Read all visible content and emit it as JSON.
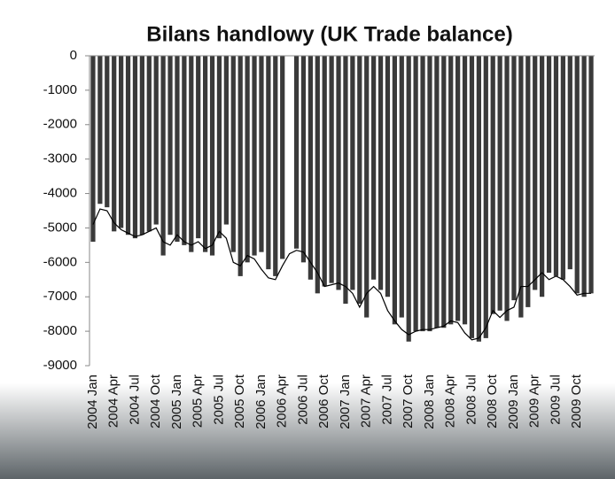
{
  "chart_data": {
    "type": "bar",
    "title": "Bilans handlowy (UK Trade balance)",
    "categories": [
      "2004 Jan",
      null,
      null,
      "2004 Apr",
      null,
      null,
      "2004 Jul",
      null,
      null,
      "2004 Oct",
      null,
      null,
      "2005 Jan",
      null,
      null,
      "2005 Apr",
      null,
      null,
      "2005 Jul",
      null,
      null,
      "2005 Oct",
      null,
      null,
      "2006 Jan",
      null,
      null,
      "2006 Apr",
      null,
      null,
      "2006 Jul",
      null,
      null,
      "2006 Oct",
      null,
      null,
      "2007 Jan",
      null,
      null,
      "2007 Apr",
      null,
      null,
      "2007 Jul",
      null,
      null,
      "2007 Oct",
      null,
      null,
      "2008 Jan",
      null,
      null,
      "2008 Apr",
      null,
      null,
      "2008 Jul",
      null,
      null,
      "2008 Oct",
      null,
      null,
      "2009 Jan",
      null,
      null,
      "2009 Apr",
      null,
      null,
      "2009 Jul",
      null,
      null,
      "2009 Oct",
      null,
      null
    ],
    "series": [
      {
        "kind": "bar",
        "color": "#3a3a3a",
        "values": [
          -5400,
          -4300,
          -4400,
          -5100,
          -5000,
          -5200,
          -5300,
          -5200,
          -5100,
          -4900,
          -5800,
          -5200,
          -5400,
          -5500,
          -5700,
          -5300,
          -5700,
          -5800,
          -5300,
          -4900,
          -5700,
          -6400,
          -6000,
          -5800,
          -5700,
          -6200,
          -6400,
          -5900,
          null,
          -5600,
          -6000,
          -6500,
          -6900,
          -6700,
          -6600,
          -6800,
          -7200,
          -6800,
          -7200,
          -7600,
          -6500,
          -6800,
          -7000,
          -7800,
          -7600,
          -8300,
          -8000,
          -8000,
          -8000,
          -7900,
          -7900,
          -7800,
          -7700,
          -7800,
          -8200,
          -8300,
          -8200,
          -7500,
          -7400,
          -7700,
          -7100,
          -7600,
          -7300,
          -6800,
          -7000,
          -6300,
          -6400,
          -6500,
          -6200,
          -6900,
          -7000,
          -6900
        ]
      },
      {
        "kind": "line",
        "color": "#000000",
        "values": [
          -4900,
          -4450,
          -4500,
          -4850,
          -5050,
          -5150,
          -5250,
          -5200,
          -5100,
          -5000,
          -5400,
          -5500,
          -5200,
          -5400,
          -5500,
          -5400,
          -5600,
          -5500,
          -5100,
          -5300,
          -6000,
          -6100,
          -5800,
          -5900,
          -6200,
          -6450,
          -6500,
          -6100,
          -5750,
          -5650,
          -5700,
          -6000,
          -6300,
          -6700,
          -6650,
          -6600,
          -6700,
          -6900,
          -7300,
          -6900,
          -6700,
          -6900,
          -7400,
          -7700,
          -7950,
          -8100,
          -8000,
          -7950,
          -7950,
          -7900,
          -7850,
          -7700,
          -7750,
          -8050,
          -8250,
          -8200,
          -7900,
          -7400,
          -7600,
          -7400,
          -7300,
          -6700,
          -6700,
          -6500,
          -6300,
          -6500,
          -6400,
          -6500,
          -6700,
          -6950,
          -6900,
          -6900
        ]
      }
    ],
    "ylim": [
      -9000,
      0
    ],
    "yticks": [
      0,
      -1000,
      -2000,
      -3000,
      -4000,
      -5000,
      -6000,
      -7000,
      -8000,
      -9000
    ]
  }
}
